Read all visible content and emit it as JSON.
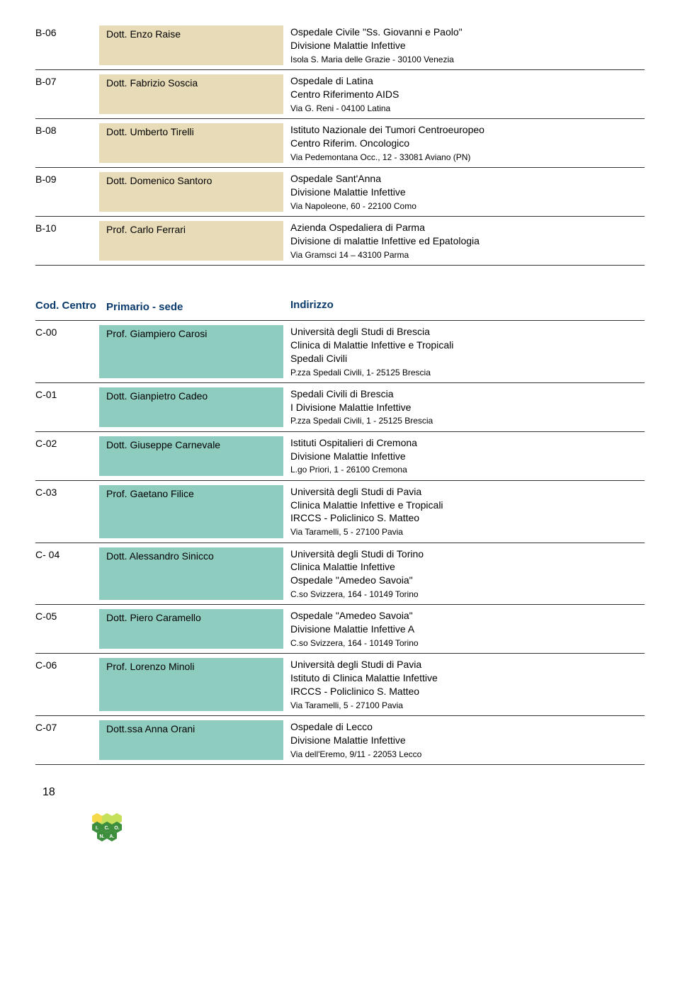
{
  "colors": {
    "bg_beige": "#e8dcb8",
    "bg_teal": "#8fccc0",
    "header_blue": "#0a3a6b",
    "text": "#000000",
    "border": "#333333",
    "hex_dark": "#3d8f3d",
    "hex_light": "#c5e05a",
    "hex_yellow": "#f5d94a"
  },
  "typography": {
    "body_fontsize": 14,
    "small_fontsize": 12,
    "header_fontsize": 15,
    "header_weight": "bold"
  },
  "section1": {
    "name_bg": "bg-beige",
    "rows": [
      {
        "code": "B-06",
        "name": "Dott. Enzo Raise",
        "addr": [
          "Ospedale Civile \"Ss. Giovanni e Paolo\"",
          "Divisione Malattie Infettive"
        ],
        "small": "Isola S. Maria delle Grazie - 30100 Venezia"
      },
      {
        "code": "B-07",
        "name": "Dott. Fabrizio Soscia",
        "addr": [
          "Ospedale di Latina",
          "Centro Riferimento AIDS"
        ],
        "small": "Via G. Reni - 04100 Latina"
      },
      {
        "code": "B-08",
        "name": "Dott. Umberto Tirelli",
        "addr": [
          "Istituto Nazionale dei Tumori Centroeuropeo",
          "Centro Riferim. Oncologico"
        ],
        "small": "Via Pedemontana Occ., 12 - 33081 Aviano (PN)"
      },
      {
        "code": "B-09",
        "name": "Dott. Domenico Santoro",
        "addr": [
          "Ospedale Sant'Anna",
          "Divisione Malattie Infettive"
        ],
        "small": "Via Napoleone, 60 - 22100 Como"
      },
      {
        "code": "B-10",
        "name": "Prof. Carlo Ferrari",
        "addr": [
          "Azienda Ospedaliera di Parma",
          "Divisione di malattie Infettive ed Epatologia"
        ],
        "small": "Via Gramsci 14 – 43100 Parma"
      }
    ]
  },
  "section2": {
    "header": {
      "code": "Cod. Centro",
      "name": "Primario - sede",
      "addr": "Indirizzo"
    },
    "name_bg": "bg-teal",
    "rows": [
      {
        "code": "C-00",
        "name": "Prof. Giampiero Carosi",
        "addr": [
          "Università degli Studi di Brescia",
          "Clinica di Malattie Infettive e Tropicali",
          "Spedali Civili"
        ],
        "small": "P.zza Spedali Civili, 1- 25125 Brescia"
      },
      {
        "code": "C-01",
        "name": "Dott. Gianpietro Cadeo",
        "addr": [
          "Spedali Civili di Brescia",
          "I Divisione Malattie Infettive"
        ],
        "small": "P.zza Spedali Civili, 1 - 25125 Brescia"
      },
      {
        "code": "C-02",
        "name": "Dott. Giuseppe Carnevale",
        "addr": [
          "Istituti Ospitalieri di Cremona",
          "Divisione Malattie Infettive"
        ],
        "small": "L.go Priori, 1 - 26100 Cremona"
      },
      {
        "code": "C-03",
        "name": "Prof. Gaetano Filice",
        "addr": [
          "Università degli Studi di Pavia",
          "Clinica Malattie Infettive e Tropicali",
          "IRCCS - Policlinico S. Matteo"
        ],
        "small": "Via Taramelli, 5 - 27100 Pavia"
      },
      {
        "code": "C- 04",
        "name": "Dott. Alessandro Sinicco",
        "addr": [
          "Università degli Studi di Torino",
          "Clinica Malattie Infettive",
          "Ospedale \"Amedeo Savoia\""
        ],
        "small": "C.so Svizzera, 164 - 10149 Torino"
      },
      {
        "code": "C-05",
        "name": "Dott. Piero Caramello",
        "addr": [
          "Ospedale \"Amedeo Savoia\"",
          "Divisione Malattie Infettive A"
        ],
        "small": "C.so Svizzera, 164 - 10149 Torino"
      },
      {
        "code": "C-06",
        "name": "Prof. Lorenzo Minoli",
        "addr": [
          "Università degli Studi di Pavia",
          "Istituto di Clinica Malattie Infettive",
          "IRCCS - Policlinico S. Matteo"
        ],
        "small": "Via Taramelli, 5 - 27100 Pavia"
      },
      {
        "code": "C-07",
        "name": "Dott.ssa Anna Orani",
        "addr": [
          "Ospedale di Lecco",
          "Divisione Malattie Infettive"
        ],
        "small": "Via dell'Eremo, 9/11 - 22053 Lecco"
      }
    ]
  },
  "page_number": "18",
  "logo_letters": [
    "I.",
    "C.",
    "O.",
    "N.",
    "A."
  ]
}
